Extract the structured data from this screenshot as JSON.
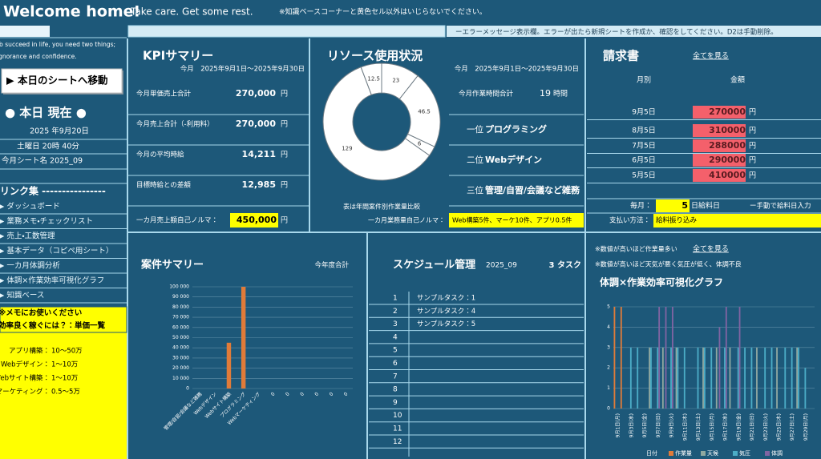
{
  "header": {
    "title": "Welcome home!",
    "subtitle": "Take care. Get some rest.",
    "notice": "※知識ベースコーナーと黄色セル以外はいじらないでください。"
  },
  "error_bar": {
    "message": "ーエラーメッセージ表示欄。エラーが出たら新規シートを作成か、確認をしてください。D2は手動削除。"
  },
  "sidebar": {
    "quote": [
      "To succeed in life, you need two things;",
      "ignorance and confidence."
    ],
    "button": "▶ 本日のシートへ移動",
    "today_label": "● 本日 現在 ●",
    "date": "2025 年9月20日",
    "time": "土曜日 20時 40分",
    "sheet_name": "今月シート名 2025_09",
    "links_title": "リンク集 ----------------",
    "links": [
      "▶ ダッシュボード",
      "▶ 業務メモ・チェックリスト",
      "▶ 売上・工数管理",
      "▶ 基本データ（コピペ用シート）",
      "▶ 一カ月体調分析",
      "▶ 体調×作業効率可視化グラフ",
      "▶ 知識ベース"
    ],
    "memo_title": "※メモにお使いください",
    "memo_subtitle": "効率良く稼ぐには？：単価一覧",
    "rates": [
      {
        "label": "アプリ構築：",
        "value": "10～50万"
      },
      {
        "label": "Webデザイン：",
        "value": "1～10万"
      },
      {
        "label": "Webサイト構築：",
        "value": "1～10万"
      },
      {
        "label": "マーケティング：",
        "value": "0.5～5万"
      }
    ]
  },
  "kpi": {
    "title": "KPIサマリー",
    "period": "今月　2025年9月1日～2025年9月30日",
    "rows": [
      {
        "label": "今月単価売上合計",
        "value": "270,000",
        "unit": "円"
      },
      {
        "label": "今月売上合計（-利用料）",
        "value": "270,000",
        "unit": "円"
      },
      {
        "label": "今月の平均時給",
        "value": "14,211",
        "unit": "円"
      },
      {
        "label": "目標時給との差額",
        "value": "12,985",
        "unit": "円"
      }
    ],
    "quota": {
      "label": "一カ月売上額自己ノルマ：",
      "value": "450,000",
      "unit": "円"
    }
  },
  "resource": {
    "title": "リソース使用状況",
    "period": "今月　2025年9月1日～2025年9月30日",
    "chart_data": {
      "type": "pie",
      "donut": true,
      "values": [
        23,
        46.5,
        6,
        129,
        12.5
      ],
      "color": "#ffffff"
    },
    "caption": "表は年間案件別作業量比較",
    "total": {
      "label": "今月作業時間合計",
      "value": 19,
      "unit": "時間"
    },
    "ranks": [
      {
        "rank": "一位",
        "name": "プログラミング"
      },
      {
        "rank": "二位",
        "name": "Webデザイン"
      },
      {
        "rank": "三位",
        "name": "管理/自習/会議など雑務"
      }
    ],
    "quota": {
      "label": "一カ月業務量自己ノルマ：",
      "value": "Web構築5件、マーケ10件、アプリ0.5件"
    }
  },
  "invoice": {
    "title": "請求書",
    "link": "全てを見る",
    "headers": [
      "月別",
      "金額"
    ],
    "rows": [
      {
        "date": "9月5日",
        "amount": "270000",
        "unit": "円"
      },
      {
        "date": "8月5日",
        "amount": "310000",
        "unit": "円"
      },
      {
        "date": "7月5日",
        "amount": "288000",
        "unit": "円"
      },
      {
        "date": "6月5日",
        "amount": "290000",
        "unit": "円"
      },
      {
        "date": "5月5日",
        "amount": "410000",
        "unit": "円"
      }
    ],
    "payday": {
      "label": "毎月：",
      "value": "5",
      "suffix": "日給料日",
      "note": "ー手動で給料日入力"
    },
    "payment": {
      "label": "支払い方法：",
      "value": "給料振り込み"
    }
  },
  "projects": {
    "title": "案件サマリー",
    "note": "今年度合計",
    "chart_data": {
      "type": "bar",
      "categories": [
        "管理/自習/会議など雑務",
        "Webデザイン",
        "Webサイト構築",
        "プログラミング",
        "Webマーケティング",
        "0",
        "0",
        "0",
        "0",
        "0",
        "0"
      ],
      "values": [
        0,
        0,
        45000,
        100000,
        0,
        0,
        0,
        0,
        0,
        0,
        0
      ],
      "color": "#e07b39",
      "ylim": [
        0,
        100000
      ],
      "yticks": [
        0,
        {
          "value": 10000,
          "label": "10 000"
        },
        {
          "value": 20000,
          "label": "20 000"
        },
        {
          "value": 30000,
          "label": "30 000"
        },
        {
          "value": 40000,
          "label": "40 000"
        },
        {
          "value": 50000,
          "label": "50 000"
        },
        {
          "value": 60000,
          "label": "60 000"
        },
        {
          "value": 70000,
          "label": "70 000"
        },
        {
          "value": 80000,
          "label": "80 000"
        },
        {
          "value": 90000,
          "label": "90 000"
        },
        {
          "value": 100000,
          "label": "100 000"
        }
      ],
      "grid": true
    }
  },
  "schedule": {
    "title": "スケジュール管理",
    "sheet": "2025_09",
    "count": "3 タスク",
    "rows": [
      {
        "no": 1,
        "task": "サンプルタスク：1"
      },
      {
        "no": 2,
        "task": "サンプルタスク：4"
      },
      {
        "no": 3,
        "task": "サンプルタスク：5"
      },
      {
        "no": 4
      },
      {
        "no": 5
      },
      {
        "no": 6
      },
      {
        "no": 7
      },
      {
        "no": 8
      },
      {
        "no": 9
      },
      {
        "no": 10
      },
      {
        "no": 11
      },
      {
        "no": 12
      }
    ]
  },
  "health": {
    "note1": "※数値が高いほど作業量多い",
    "link": "全てを見る",
    "note2": "※数値が高いほど天気が悪く気圧が低く、体調不良",
    "title": "体調×作業効率可視化グラフ",
    "chart_data": {
      "type": "bar",
      "x_label": "日付",
      "categories": [
        "9月1日(月)",
        null,
        "9月3日(水)",
        null,
        "9月5日(金)",
        null,
        "9月7日(日)",
        null,
        "9月9日(火)",
        null,
        "9月11日(木)",
        null,
        "9月13日(土)",
        null,
        "9月15日(月)",
        null,
        "9月17日(水)",
        null,
        "9月19日(金)",
        null,
        "9月21日(日)",
        null,
        "9月23日(火)",
        null,
        "9月25日(木)",
        null,
        "9月27日(土)",
        null,
        "9月29日(月)",
        null
      ],
      "series": [
        {
          "name": "作業量",
          "color": "#e07b39",
          "values": [
            5,
            5,
            0,
            0,
            0,
            0,
            0,
            0,
            0,
            0,
            0,
            0,
            0,
            0,
            0,
            0,
            0,
            0,
            0,
            0,
            0,
            0,
            0,
            0,
            0,
            0,
            0,
            0,
            0,
            0
          ]
        },
        {
          "name": "天候",
          "color": "#8fa8a0",
          "values": [
            0,
            0,
            0,
            0,
            0,
            3,
            0,
            3,
            0,
            3,
            0,
            0,
            0,
            3,
            0,
            3,
            0,
            3,
            0,
            0,
            0,
            3,
            0,
            0,
            3,
            0,
            0,
            3,
            0,
            0
          ]
        },
        {
          "name": "気圧",
          "color": "#4bacc6",
          "values": [
            0,
            0,
            3,
            3,
            0,
            3,
            3,
            0,
            3,
            3,
            3,
            0,
            3,
            3,
            3,
            0,
            3,
            0,
            3,
            3,
            3,
            0,
            3,
            3,
            0,
            3,
            3,
            3,
            2,
            0
          ]
        },
        {
          "name": "体調",
          "color": "#8064a2",
          "values": [
            0,
            0,
            0,
            0,
            0,
            0,
            5,
            5,
            5,
            0,
            0,
            0,
            0,
            0,
            0,
            4,
            5,
            0,
            5,
            0,
            0,
            0,
            0,
            0,
            0,
            0,
            0,
            0,
            0,
            0
          ]
        }
      ],
      "ylim": [
        0,
        5
      ],
      "yticks": [
        0,
        1,
        2,
        3,
        4,
        5
      ],
      "grid": true,
      "legend": "bottom"
    }
  }
}
